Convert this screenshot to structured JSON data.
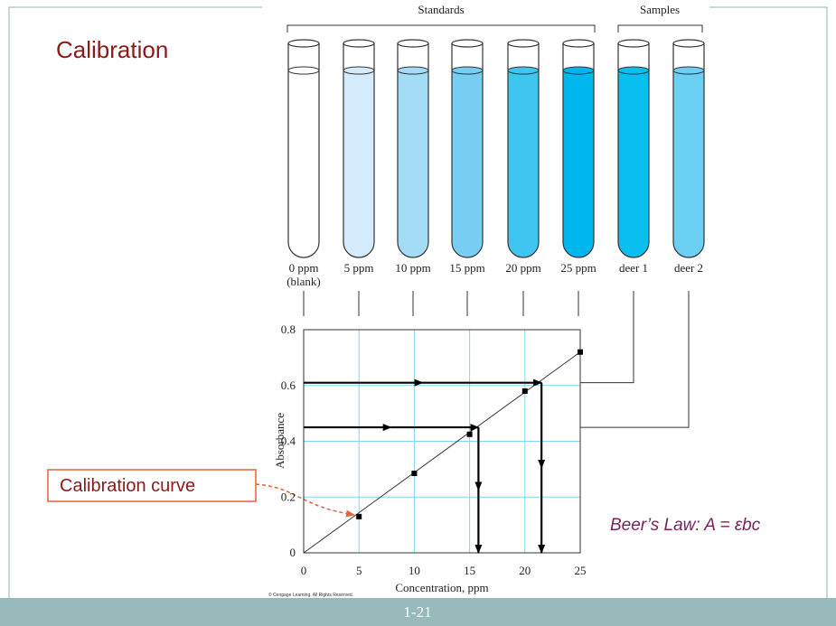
{
  "slide": {
    "title": "Calibration",
    "callout": "Calibration curve",
    "equation": "Beer’s Law:  A = εbc",
    "page_number": "1-21",
    "copyright": "© Cengage Learning. All Rights Reserved."
  },
  "figure": {
    "standards_label": "Standards",
    "samples_label": "Samples",
    "standards": [
      {
        "label": "0 ppm",
        "sublabel": "(blank)",
        "color": "#ffffff"
      },
      {
        "label": "5 ppm",
        "color": "#d3ebfa"
      },
      {
        "label": "10 ppm",
        "color": "#a5dcf5"
      },
      {
        "label": "15 ppm",
        "color": "#76cff3"
      },
      {
        "label": "20 ppm",
        "color": "#3ec5f0"
      },
      {
        "label": "25 ppm",
        "color": "#00b6ee"
      }
    ],
    "samples": [
      {
        "label": "deer 1",
        "color": "#08bfef"
      },
      {
        "label": "deer 2",
        "color": "#6ccff4"
      }
    ]
  },
  "chart_data": {
    "type": "scatter",
    "x_label": "Concentration, ppm",
    "y_label": "Absorbance",
    "x": [
      5,
      10,
      15,
      20,
      25
    ],
    "values": [
      0.13,
      0.285,
      0.425,
      0.58,
      0.72
    ],
    "color": "#000000",
    "xlim": [
      0,
      25
    ],
    "ylim": [
      0,
      0.8
    ],
    "xticks": [
      0,
      5,
      10,
      15,
      20,
      25
    ],
    "yticks": [
      0,
      0.2,
      0.4,
      0.6,
      0.8
    ],
    "grid": true,
    "grid_color": "#7fd8ea",
    "fit_line": {
      "x": [
        0,
        25
      ],
      "values": [
        0,
        0.72
      ]
    },
    "readings": [
      {
        "absorbance": 0.61,
        "concentration": 21.5
      },
      {
        "absorbance": 0.45,
        "concentration": 15.8
      }
    ]
  }
}
